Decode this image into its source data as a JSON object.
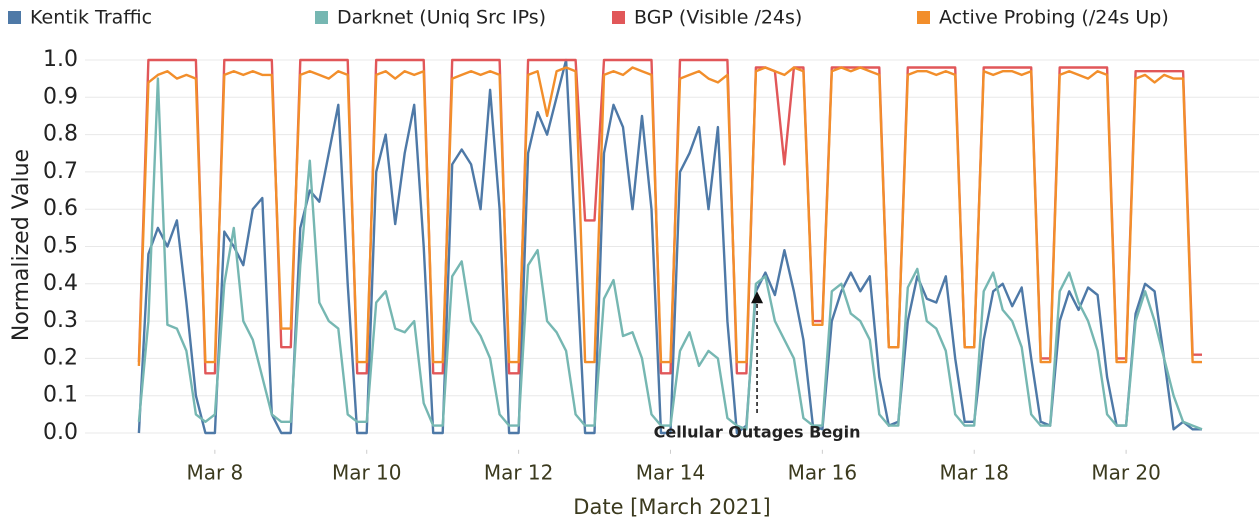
{
  "chart_data": {
    "type": "line",
    "x_label": "Date [March 2021]",
    "y_label": "Normalized Value",
    "xlim": [
      6.29,
      21.75
    ],
    "ylim": [
      -0.045,
      1.03
    ],
    "xticks": [
      {
        "value": 8,
        "label": "Mar 8"
      },
      {
        "value": 10,
        "label": "Mar 10"
      },
      {
        "value": 12,
        "label": "Mar 12"
      },
      {
        "value": 14,
        "label": "Mar 14"
      },
      {
        "value": 16,
        "label": "Mar 16"
      },
      {
        "value": 18,
        "label": "Mar 18"
      },
      {
        "value": 20,
        "label": "Mar 20"
      }
    ],
    "yticks": [
      {
        "value": 0,
        "label": "0.0"
      },
      0.1,
      0.2,
      0.3,
      0.4,
      0.5,
      0.6,
      0.7,
      0.8,
      0.9,
      {
        "value": 1,
        "label": "1.0"
      }
    ],
    "grid": true,
    "legend": "top",
    "annotation": {
      "text": "Cellular Outages Begin",
      "x": 15.14,
      "y": 0.38
    },
    "x": [
      7,
      7.125,
      7.25,
      7.375,
      7.5,
      7.625,
      7.75,
      7.875,
      8,
      8.125,
      8.25,
      8.375,
      8.5,
      8.625,
      8.75,
      8.875,
      9,
      9.125,
      9.25,
      9.375,
      9.5,
      9.625,
      9.75,
      9.875,
      10,
      10.125,
      10.25,
      10.375,
      10.5,
      10.625,
      10.75,
      10.875,
      11,
      11.125,
      11.25,
      11.375,
      11.5,
      11.625,
      11.75,
      11.875,
      12,
      12.125,
      12.25,
      12.375,
      12.5,
      12.625,
      12.75,
      12.875,
      13,
      13.125,
      13.25,
      13.375,
      13.5,
      13.625,
      13.75,
      13.875,
      14,
      14.125,
      14.25,
      14.375,
      14.5,
      14.625,
      14.75,
      14.875,
      15,
      15.125,
      15.25,
      15.375,
      15.5,
      15.625,
      15.75,
      15.875,
      16,
      16.125,
      16.25,
      16.375,
      16.5,
      16.625,
      16.75,
      16.875,
      17,
      17.125,
      17.25,
      17.375,
      17.5,
      17.625,
      17.75,
      17.875,
      18,
      18.125,
      18.25,
      18.375,
      18.5,
      18.625,
      18.75,
      18.875,
      19,
      19.125,
      19.25,
      19.375,
      19.5,
      19.625,
      19.75,
      19.875,
      20,
      20.125,
      20.25,
      20.375,
      20.5,
      20.625,
      20.75,
      20.875,
      21
    ],
    "series": [
      {
        "name": "Kentik Traffic",
        "color": "#4e79a7",
        "values": [
          0.0,
          0.48,
          0.55,
          0.5,
          0.57,
          0.35,
          0.1,
          0.0,
          0.0,
          0.54,
          0.5,
          0.45,
          0.6,
          0.63,
          0.05,
          0.0,
          0.0,
          0.55,
          0.65,
          0.62,
          0.75,
          0.88,
          0.4,
          0.0,
          0.0,
          0.7,
          0.8,
          0.56,
          0.75,
          0.88,
          0.5,
          0.0,
          0.0,
          0.72,
          0.76,
          0.72,
          0.6,
          0.92,
          0.6,
          0.0,
          0.0,
          0.75,
          0.86,
          0.8,
          0.9,
          1.0,
          0.5,
          0.0,
          0.0,
          0.75,
          0.88,
          0.82,
          0.6,
          0.85,
          0.6,
          0.0,
          0.0,
          0.7,
          0.75,
          0.82,
          0.6,
          0.82,
          0.3,
          0.0,
          0.02,
          0.38,
          0.43,
          0.37,
          0.49,
          0.38,
          0.25,
          0.02,
          0.01,
          0.3,
          0.38,
          0.43,
          0.38,
          0.42,
          0.15,
          0.02,
          0.03,
          0.3,
          0.42,
          0.36,
          0.35,
          0.42,
          0.2,
          0.03,
          0.03,
          0.25,
          0.38,
          0.4,
          0.34,
          0.39,
          0.2,
          0.03,
          0.02,
          0.3,
          0.38,
          0.33,
          0.39,
          0.37,
          0.15,
          0.02,
          0.02,
          0.32,
          0.4,
          0.38,
          0.2,
          0.01,
          0.03,
          0.01,
          0.01
        ]
      },
      {
        "name": "Darknet (Uniq Src IPs)",
        "color": "#76b7b2",
        "values": [
          0.03,
          0.3,
          0.95,
          0.29,
          0.28,
          0.22,
          0.05,
          0.03,
          0.05,
          0.4,
          0.55,
          0.3,
          0.25,
          0.15,
          0.05,
          0.03,
          0.03,
          0.45,
          0.73,
          0.35,
          0.3,
          0.28,
          0.05,
          0.03,
          0.03,
          0.35,
          0.38,
          0.28,
          0.27,
          0.3,
          0.08,
          0.02,
          0.02,
          0.42,
          0.46,
          0.3,
          0.26,
          0.2,
          0.05,
          0.02,
          0.02,
          0.45,
          0.49,
          0.3,
          0.27,
          0.22,
          0.05,
          0.02,
          0.02,
          0.36,
          0.41,
          0.26,
          0.27,
          0.2,
          0.05,
          0.02,
          0.02,
          0.22,
          0.27,
          0.18,
          0.22,
          0.2,
          0.04,
          0.02,
          0.01,
          0.4,
          0.42,
          0.3,
          0.25,
          0.2,
          0.04,
          0.02,
          0.02,
          0.38,
          0.4,
          0.32,
          0.3,
          0.25,
          0.05,
          0.02,
          0.02,
          0.39,
          0.44,
          0.3,
          0.28,
          0.22,
          0.05,
          0.02,
          0.02,
          0.38,
          0.43,
          0.33,
          0.3,
          0.23,
          0.05,
          0.02,
          0.02,
          0.38,
          0.43,
          0.35,
          0.3,
          0.22,
          0.05,
          0.02,
          0.02,
          0.3,
          0.38,
          0.3,
          0.2,
          0.1,
          0.03,
          0.02,
          0.01
        ]
      },
      {
        "name": "BGP (Visible /24s)",
        "color": "#e15759",
        "values": [
          0.19,
          1,
          1,
          1,
          1,
          1,
          1,
          0.16,
          0.16,
          1,
          1,
          1,
          1,
          1,
          1,
          0.23,
          0.23,
          1,
          1,
          1,
          1,
          1,
          1,
          0.16,
          0.16,
          1,
          1,
          1,
          1,
          1,
          1,
          0.16,
          0.16,
          1,
          1,
          1,
          1,
          1,
          1,
          0.16,
          0.16,
          1,
          1,
          1,
          1,
          1,
          1,
          0.57,
          0.57,
          1,
          1,
          1,
          1,
          1,
          1,
          0.16,
          0.16,
          1,
          1,
          1,
          1,
          1,
          1,
          0.16,
          0.16,
          0.98,
          0.98,
          0.97,
          0.72,
          0.98,
          0.98,
          0.3,
          0.3,
          0.98,
          0.98,
          0.98,
          0.98,
          0.98,
          0.98,
          0.23,
          0.23,
          0.98,
          0.98,
          0.98,
          0.98,
          0.98,
          0.98,
          0.23,
          0.23,
          0.98,
          0.98,
          0.98,
          0.98,
          0.98,
          0.98,
          0.2,
          0.2,
          0.98,
          0.98,
          0.98,
          0.98,
          0.98,
          0.98,
          0.2,
          0.2,
          0.97,
          0.97,
          0.97,
          0.97,
          0.97,
          0.97,
          0.21,
          0.21
        ]
      },
      {
        "name": "Active Probing (/24s Up)",
        "color": "#f28e2b",
        "values": [
          0.18,
          0.94,
          0.96,
          0.97,
          0.95,
          0.96,
          0.95,
          0.19,
          0.19,
          0.96,
          0.97,
          0.96,
          0.97,
          0.96,
          0.96,
          0.28,
          0.28,
          0.96,
          0.97,
          0.96,
          0.95,
          0.97,
          0.96,
          0.19,
          0.19,
          0.96,
          0.97,
          0.95,
          0.97,
          0.96,
          0.97,
          0.19,
          0.19,
          0.95,
          0.96,
          0.97,
          0.96,
          0.97,
          0.96,
          0.19,
          0.19,
          0.96,
          0.97,
          0.85,
          0.97,
          0.98,
          0.97,
          0.19,
          0.19,
          0.96,
          0.97,
          0.96,
          0.98,
          0.97,
          0.96,
          0.19,
          0.19,
          0.95,
          0.96,
          0.97,
          0.95,
          0.94,
          0.96,
          0.19,
          0.19,
          0.97,
          0.98,
          0.97,
          0.96,
          0.98,
          0.97,
          0.29,
          0.29,
          0.97,
          0.98,
          0.97,
          0.98,
          0.97,
          0.96,
          0.23,
          0.23,
          0.96,
          0.97,
          0.97,
          0.96,
          0.97,
          0.96,
          0.23,
          0.23,
          0.97,
          0.96,
          0.97,
          0.97,
          0.96,
          0.97,
          0.19,
          0.19,
          0.96,
          0.97,
          0.96,
          0.95,
          0.97,
          0.96,
          0.19,
          0.19,
          0.95,
          0.96,
          0.94,
          0.96,
          0.95,
          0.95,
          0.19,
          0.19
        ]
      }
    ]
  }
}
